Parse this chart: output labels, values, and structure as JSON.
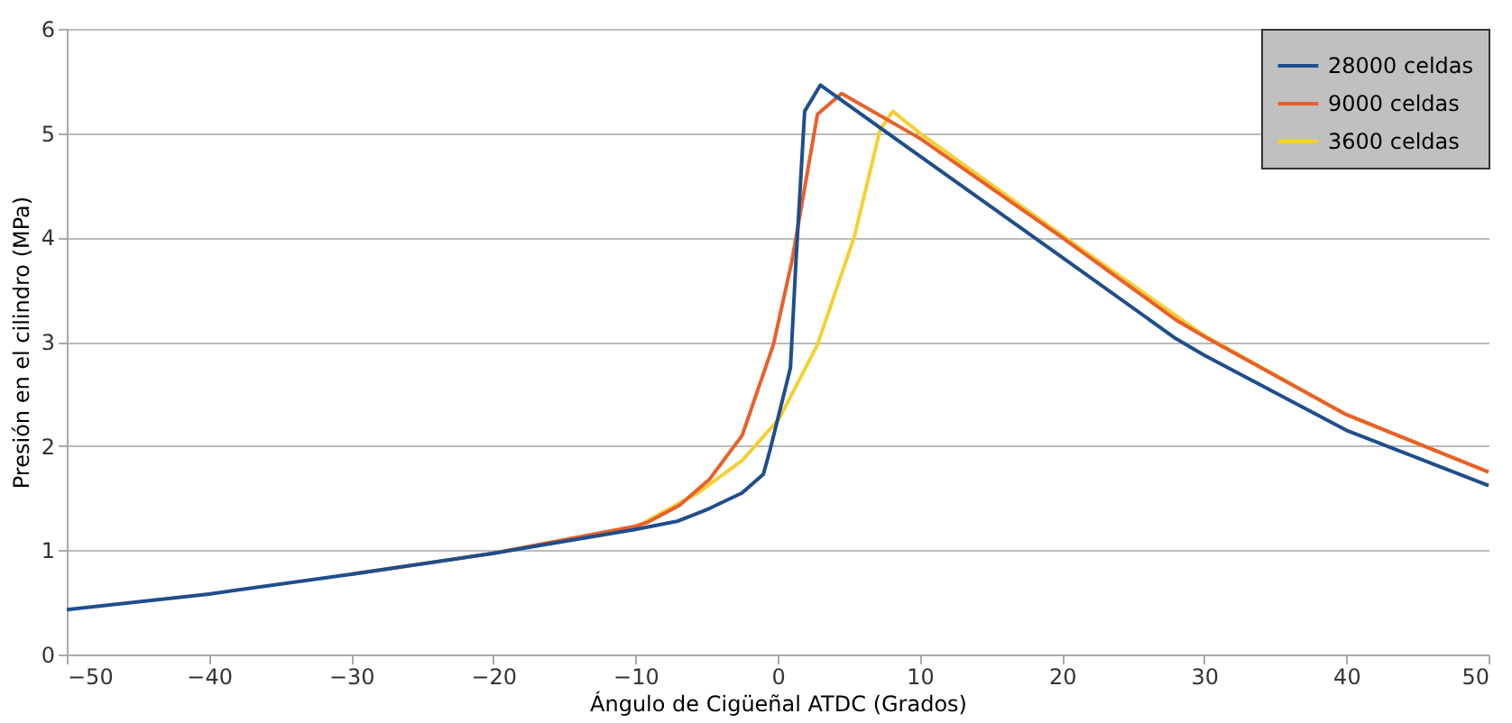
{
  "chart_data": {
    "type": "line",
    "xlabel": "Ángulo de Cigüeñal ATDC (Grados)",
    "ylabel": "Presión en el cilindro (MPa)",
    "xlim": [
      -50,
      50
    ],
    "xticks": [
      -50,
      -40,
      -30,
      -20,
      -10,
      0,
      10,
      20,
      30,
      40,
      50
    ],
    "ylim": [
      0,
      6
    ],
    "yticks": [
      0,
      1,
      2,
      3,
      4,
      5,
      6
    ],
    "grid": "y",
    "legend": "top right",
    "marker": "none",
    "line_style": "solid",
    "series": [
      {
        "name": "28000 celdas",
        "color": "#1f4e8c",
        "x": [
          -50,
          -40,
          -30,
          -20,
          -10,
          -7,
          -4.8,
          -2.5,
          -1,
          -0.5,
          0.9,
          1.3,
          1.9,
          3,
          10,
          20,
          28,
          30,
          40,
          50
        ],
        "values": [
          0.43,
          0.58,
          0.77,
          0.97,
          1.2,
          1.28,
          1.4,
          1.55,
          1.73,
          1.98,
          2.75,
          3.8,
          5.21,
          5.46,
          4.78,
          3.81,
          3.03,
          2.87,
          2.15,
          1.62
        ]
      },
      {
        "name": "9000 celdas",
        "color": "#e8602c",
        "x": [
          -30,
          -20,
          -10,
          -9.1,
          -6.9,
          -4.8,
          -2.5,
          -0.3,
          1,
          2.8,
          4.5,
          10,
          20,
          28,
          30,
          40,
          50
        ],
        "values": [
          0.77,
          0.97,
          1.23,
          1.27,
          1.43,
          1.68,
          2.1,
          2.97,
          3.77,
          5.18,
          5.38,
          4.95,
          4.0,
          3.21,
          3.05,
          2.3,
          1.75
        ]
      },
      {
        "name": "3600 celdas",
        "color": "#f5d033",
        "x": [
          -20,
          -10,
          -5.6,
          -2.5,
          0.1,
          2.8,
          5.4,
          7.2,
          8.1,
          10,
          20,
          30,
          40,
          50
        ],
        "values": [
          0.97,
          1.22,
          1.55,
          1.86,
          2.26,
          2.97,
          4.01,
          5.03,
          5.21,
          5.0,
          4.02,
          3.06,
          2.3,
          1.75
        ]
      }
    ]
  }
}
